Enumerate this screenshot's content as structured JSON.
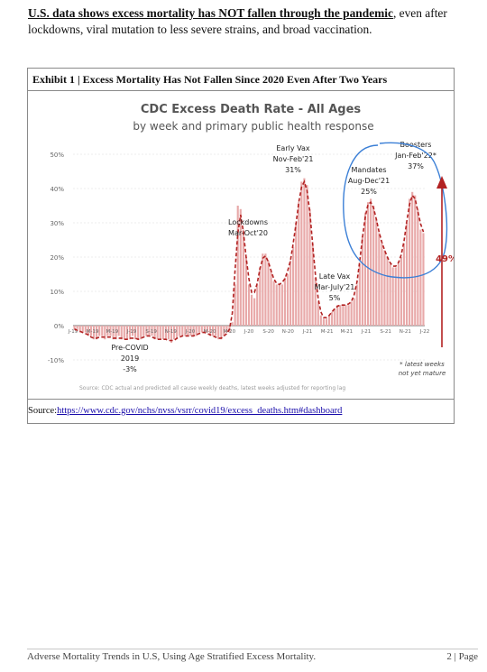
{
  "intro": {
    "lead": "U.S. data shows excess mortality has NOT fallen through the pandemic",
    "rest": ", even after lockdowns, viral mutation to less severe strains, and broad vaccination."
  },
  "exhibit_title": "Exhibit 1 | Excess Mortality Has Not Fallen Since 2020 Even After Two Years",
  "chart_data": {
    "type": "bar",
    "title": "CDC Excess Death Rate - All Ages",
    "subtitle": "by week and primary public health response",
    "ylim": [
      -10,
      50
    ],
    "yticks": [
      "50%",
      "40%",
      "30%",
      "20%",
      "10%",
      "0%",
      "-10%"
    ],
    "ytick_values": [
      50,
      40,
      30,
      20,
      10,
      0,
      -10
    ],
    "xticks": [
      "J-19",
      "M-19",
      "M-19",
      "J-19",
      "S-19",
      "N-19",
      "J-20",
      "M-20",
      "M-20",
      "J-20",
      "S-20",
      "N-20",
      "J-21",
      "M-21",
      "M-21",
      "J-21",
      "S-21",
      "N-21",
      "J-22"
    ],
    "series": [
      {
        "values": [
          -1,
          -1,
          -2,
          -2,
          -2,
          -3,
          -3,
          -4,
          -4,
          -3,
          -3,
          -4,
          -3,
          -3,
          -4,
          -4,
          -3,
          -4,
          -4,
          -4,
          -4,
          -3,
          -4,
          -4,
          -4,
          -3,
          -3,
          -3,
          -3,
          -4,
          -4,
          -4,
          -4,
          -4,
          -4,
          -5,
          -4,
          -4,
          -3,
          -3,
          -3,
          -3,
          -3,
          -3,
          -3,
          -2,
          -2,
          -2,
          -2,
          -3,
          -3,
          -3,
          -4,
          -4,
          -3,
          -2,
          -2,
          1,
          12,
          35,
          34,
          28,
          20,
          12,
          9,
          8,
          12,
          17,
          21,
          21,
          19,
          16,
          13,
          12,
          12,
          12,
          14,
          15,
          19,
          23,
          30,
          36,
          42,
          43,
          41,
          34,
          24,
          14,
          7,
          3,
          2,
          2,
          3,
          4,
          5,
          6,
          6,
          6,
          6,
          6,
          7,
          8,
          12,
          18,
          26,
          33,
          36,
          37,
          35,
          31,
          27,
          24,
          22,
          20,
          18,
          17,
          17,
          18,
          20,
          24,
          30,
          37,
          39,
          38,
          34,
          28,
          27
        ]
      }
    ],
    "annotations": [
      {
        "line1": "Pre-COVID",
        "line2": "2019",
        "line3": "-3%"
      },
      {
        "line1": "Lockdowns",
        "line2": "Mar-Oct'20",
        "line3": ""
      },
      {
        "line1": "Early Vax",
        "line2": "Nov-Feb'21",
        "line3": "31%"
      },
      {
        "line1": "Late Vax",
        "line2": "Mar-July'21",
        "line3": "5%"
      },
      {
        "line1": "Mandates",
        "line2": "Aug-Dec'21",
        "line3": "25%"
      },
      {
        "line1": "Boosters",
        "line2": "Jan-Feb'22*",
        "line3": "37%"
      }
    ],
    "arrow_label": "49%",
    "footnote_line1": "* latest weeks",
    "footnote_line2": "not yet mature",
    "source_note": "Source: CDC actual and predicted all cause weekly deaths, latest weeks adjusted for reporting lag",
    "bar_color": "#e8a9a9",
    "trend_color": "#b22222",
    "circle_color": "#3b7fd6"
  },
  "source": {
    "label": "Source:",
    "url": "https://www.cdc.gov/nchs/nvss/vsrr/covid19/excess_deaths.htm#dashboard"
  },
  "footer": {
    "left": "Adverse Mortality Trends in U.S, Using Age Stratified Excess Mortality.",
    "right": "2 | Page"
  }
}
